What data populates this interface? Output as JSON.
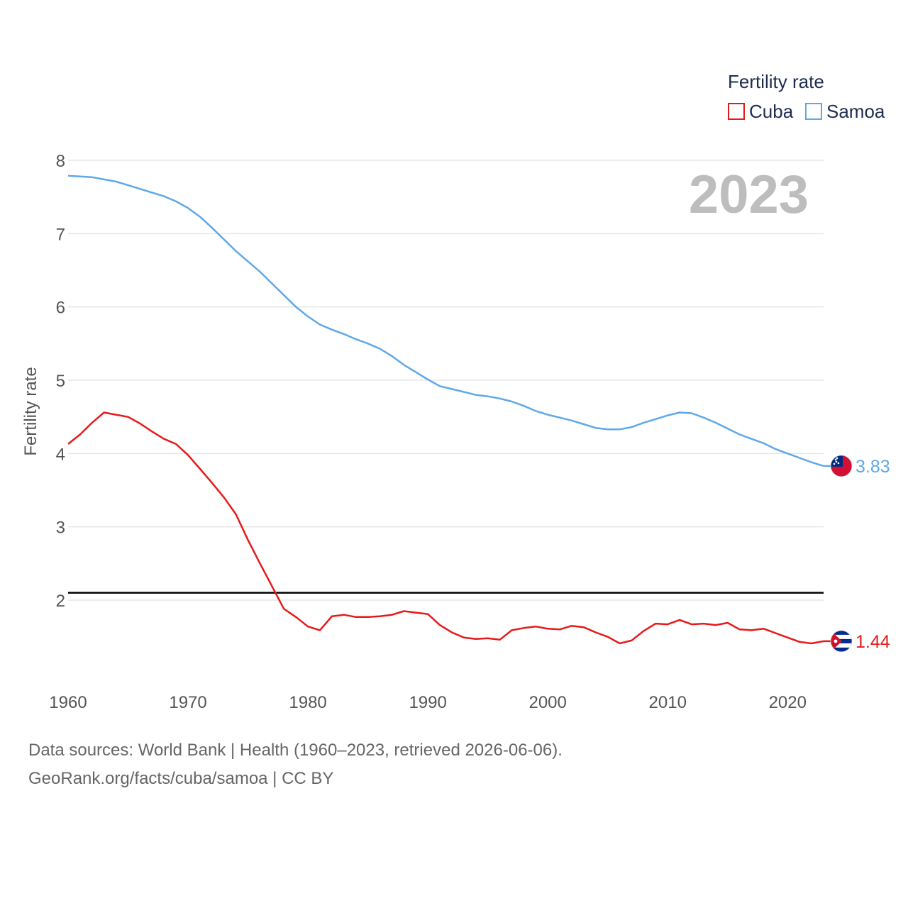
{
  "chart_data": {
    "type": "line",
    "year_label": "2023",
    "ylabel": "Fertility rate",
    "xlabel": "",
    "ylim": [
      1,
      8
    ],
    "y_ticks": [
      2,
      3,
      4,
      5,
      6,
      7,
      8
    ],
    "xlim": [
      1960,
      2023
    ],
    "x_ticks": [
      1960,
      1970,
      1980,
      1990,
      2000,
      2010,
      2020
    ],
    "legend": {
      "title": "Fertility rate",
      "position": "top-right"
    },
    "reference_line": {
      "value": 2.1,
      "color": "#000000"
    },
    "series": [
      {
        "name": "Cuba",
        "color": "#e8191a",
        "end_label": "1.44",
        "start_year": 1960,
        "values": [
          4.13,
          4.26,
          4.42,
          4.56,
          4.53,
          4.5,
          4.41,
          4.3,
          4.2,
          4.13,
          3.98,
          3.79,
          3.6,
          3.4,
          3.17,
          2.82,
          2.5,
          2.19,
          1.88,
          1.77,
          1.64,
          1.59,
          1.78,
          1.8,
          1.77,
          1.77,
          1.78,
          1.8,
          1.85,
          1.83,
          1.81,
          1.66,
          1.56,
          1.49,
          1.47,
          1.48,
          1.46,
          1.59,
          1.62,
          1.64,
          1.61,
          1.6,
          1.65,
          1.63,
          1.56,
          1.5,
          1.41,
          1.45,
          1.58,
          1.68,
          1.67,
          1.73,
          1.67,
          1.68,
          1.66,
          1.69,
          1.6,
          1.59,
          1.61,
          1.55,
          1.49,
          1.43,
          1.41,
          1.44
        ]
      },
      {
        "name": "Samoa",
        "color": "#5fa8e8",
        "end_label": "3.83",
        "start_year": 1960,
        "values": [
          7.79,
          7.78,
          7.77,
          7.74,
          7.71,
          7.66,
          7.61,
          7.56,
          7.51,
          7.44,
          7.35,
          7.23,
          7.08,
          6.92,
          6.76,
          6.62,
          6.48,
          6.32,
          6.16,
          6.0,
          5.87,
          5.76,
          5.69,
          5.63,
          5.56,
          5.5,
          5.43,
          5.33,
          5.21,
          5.11,
          5.01,
          4.92,
          4.88,
          4.84,
          4.8,
          4.78,
          4.75,
          4.71,
          4.65,
          4.58,
          4.53,
          4.49,
          4.45,
          4.4,
          4.35,
          4.33,
          4.33,
          4.36,
          4.42,
          4.47,
          4.52,
          4.56,
          4.55,
          4.49,
          4.42,
          4.34,
          4.26,
          4.2,
          4.14,
          4.06,
          4.0,
          3.94,
          3.88,
          3.83
        ]
      }
    ]
  },
  "footer": {
    "line1": "Data sources: World Bank | Health (1960–2023, retrieved 2026-06-06).",
    "line2": "GeoRank.org/facts/cuba/samoa | CC BY"
  }
}
